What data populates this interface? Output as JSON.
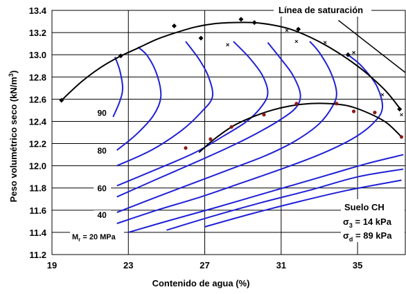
{
  "chart_data": {
    "type": "line",
    "xlabel": "Contenido de agua (%)",
    "ylabel_main": "Peso volumétrico seco (kN/m",
    "ylabel_sup": "3",
    "ylabel_close": ")",
    "xlim": [
      19,
      37.5
    ],
    "ylim": [
      11.2,
      13.4
    ],
    "xticks": [
      19,
      23,
      27,
      31,
      35
    ],
    "yticks": [
      11.2,
      11.4,
      11.6,
      11.8,
      12.0,
      12.2,
      12.4,
      12.6,
      12.8,
      13.0,
      13.2,
      13.4
    ],
    "grid": true,
    "annotations": {
      "saturation": "Línea de saturación",
      "soil": "Suelo CH",
      "sigma3_symbol": "σ",
      "sigma3_sub": "3",
      "sigma3_value": " = 14 kPa",
      "sigmad_symbol": "σ",
      "sigmad_sub": "d",
      "sigmad_value": " = 89 kPa",
      "mr_symbol": "M",
      "mr_sub": "r",
      "mr_value": " = 20 MPa"
    },
    "contour_labels": [
      {
        "text": "90",
        "x": 21.8,
        "y": 12.45
      },
      {
        "text": "80",
        "x": 21.8,
        "y": 12.11
      },
      {
        "text": "60",
        "x": 21.8,
        "y": 11.77
      },
      {
        "text": "40",
        "x": 21.8,
        "y": 11.53
      }
    ],
    "saturation_line": [
      {
        "x": 34.0,
        "y": 13.31
      },
      {
        "x": 37.5,
        "y": 12.84
      }
    ],
    "curves": [
      {
        "name": "upper compaction",
        "color": "#000000",
        "points": [
          [
            19.5,
            12.59
          ],
          [
            20.5,
            12.75
          ],
          [
            21.5,
            12.88
          ],
          [
            22.5,
            12.98
          ],
          [
            23.5,
            13.06
          ],
          [
            24.5,
            13.14
          ],
          [
            25.5,
            13.2
          ],
          [
            26.5,
            13.25
          ],
          [
            27.5,
            13.28
          ],
          [
            28.5,
            13.29
          ],
          [
            29.5,
            13.29
          ],
          [
            30.5,
            13.27
          ],
          [
            31.5,
            13.23
          ],
          [
            32.5,
            13.16
          ],
          [
            33.5,
            13.07
          ],
          [
            34.5,
            12.96
          ],
          [
            35.5,
            12.83
          ],
          [
            36.5,
            12.67
          ],
          [
            37.2,
            12.52
          ]
        ]
      },
      {
        "name": "lower compaction",
        "color": "#000000",
        "points": [
          [
            26.7,
            12.12
          ],
          [
            27.5,
            12.24
          ],
          [
            28.5,
            12.36
          ],
          [
            29.5,
            12.44
          ],
          [
            30.5,
            12.5
          ],
          [
            31.5,
            12.54
          ],
          [
            32.5,
            12.56
          ],
          [
            33.5,
            12.56
          ],
          [
            34.5,
            12.54
          ],
          [
            35.5,
            12.48
          ],
          [
            36.5,
            12.39
          ],
          [
            37.3,
            12.26
          ]
        ]
      }
    ],
    "contours": [
      {
        "color": "#1f1fd6",
        "points": [
          [
            22.2,
            12.44
          ],
          [
            22.55,
            12.58
          ],
          [
            22.7,
            12.7
          ],
          [
            22.55,
            12.86
          ],
          [
            22.3,
            12.98
          ]
        ]
      },
      {
        "color": "#1f1fd6",
        "points": [
          [
            22.4,
            12.14
          ],
          [
            23.4,
            12.28
          ],
          [
            24.3,
            12.45
          ],
          [
            24.7,
            12.62
          ],
          [
            24.5,
            12.82
          ],
          [
            24.0,
            12.99
          ],
          [
            23.5,
            13.07
          ]
        ]
      },
      {
        "color": "#1f1fd6",
        "points": [
          [
            22.4,
            12.0
          ],
          [
            24.2,
            12.14
          ],
          [
            25.8,
            12.32
          ],
          [
            26.8,
            12.48
          ],
          [
            27.4,
            12.62
          ],
          [
            27.2,
            12.8
          ],
          [
            26.7,
            12.96
          ],
          [
            26.0,
            13.12
          ]
        ]
      },
      {
        "color": "#1f1fd6",
        "points": [
          [
            22.4,
            11.82
          ],
          [
            24.5,
            11.97
          ],
          [
            26.5,
            12.12
          ],
          [
            28.0,
            12.27
          ],
          [
            29.2,
            12.4
          ],
          [
            30.0,
            12.54
          ],
          [
            30.3,
            12.66
          ],
          [
            30.0,
            12.82
          ],
          [
            29.3,
            12.98
          ],
          [
            28.5,
            13.12
          ]
        ]
      },
      {
        "color": "#1f1fd6",
        "points": [
          [
            22.4,
            11.72
          ],
          [
            24.5,
            11.88
          ],
          [
            26.5,
            12.03
          ],
          [
            28.3,
            12.17
          ],
          [
            29.7,
            12.29
          ],
          [
            31.0,
            12.42
          ],
          [
            31.8,
            12.53
          ],
          [
            32.0,
            12.65
          ],
          [
            31.6,
            12.82
          ],
          [
            31.0,
            12.96
          ],
          [
            30.3,
            13.11
          ]
        ]
      },
      {
        "color": "#1f1fd6",
        "points": [
          [
            22.4,
            11.58
          ],
          [
            24.5,
            11.72
          ],
          [
            26.5,
            11.85
          ],
          [
            28.5,
            11.98
          ],
          [
            30.3,
            12.1
          ],
          [
            31.8,
            12.23
          ],
          [
            33.0,
            12.38
          ],
          [
            33.7,
            12.54
          ],
          [
            33.9,
            12.66
          ],
          [
            33.6,
            12.84
          ],
          [
            33.0,
            13.02
          ],
          [
            32.5,
            13.12
          ]
        ]
      },
      {
        "color": "#1f1fd6",
        "points": [
          [
            22.4,
            11.48
          ],
          [
            24.5,
            11.6
          ],
          [
            26.8,
            11.72
          ],
          [
            29.0,
            11.85
          ],
          [
            31.0,
            11.97
          ],
          [
            33.0,
            12.1
          ],
          [
            34.7,
            12.24
          ],
          [
            35.8,
            12.38
          ],
          [
            36.3,
            12.52
          ],
          [
            36.0,
            12.72
          ],
          [
            35.2,
            12.9
          ],
          [
            34.5,
            13.0
          ]
        ]
      },
      {
        "color": "#1f1fd6",
        "points": [
          [
            23.0,
            11.4
          ],
          [
            25.0,
            11.5
          ],
          [
            27.5,
            11.62
          ],
          [
            29.5,
            11.72
          ],
          [
            31.5,
            11.82
          ],
          [
            33.5,
            11.92
          ],
          [
            35.5,
            12.02
          ],
          [
            37.4,
            12.1
          ]
        ]
      },
      {
        "color": "#1f1fd6",
        "points": [
          [
            25.0,
            11.42
          ],
          [
            27.5,
            11.55
          ],
          [
            30.0,
            11.67
          ],
          [
            32.5,
            11.78
          ],
          [
            35.0,
            11.9
          ],
          [
            37.4,
            11.97
          ]
        ]
      },
      {
        "color": "#1f1fd6",
        "points": [
          [
            27.0,
            11.45
          ],
          [
            29.5,
            11.57
          ],
          [
            32.0,
            11.68
          ],
          [
            34.5,
            11.78
          ],
          [
            37.3,
            11.87
          ]
        ]
      }
    ],
    "markers": {
      "diamond_black": [
        [
          19.5,
          12.59
        ],
        [
          22.6,
          12.99
        ],
        [
          25.4,
          13.26
        ],
        [
          26.8,
          13.15
        ],
        [
          28.9,
          13.32
        ],
        [
          29.6,
          13.29
        ],
        [
          31.9,
          13.23
        ],
        [
          34.5,
          13.0
        ],
        [
          37.2,
          12.51
        ]
      ],
      "cross_black": [
        [
          28.2,
          13.09
        ],
        [
          31.3,
          13.22
        ],
        [
          31.8,
          13.12
        ],
        [
          33.3,
          13.11
        ],
        [
          34.8,
          13.02
        ],
        [
          36.3,
          12.64
        ],
        [
          37.3,
          12.46
        ]
      ],
      "circle_red": [
        [
          26.0,
          12.16
        ],
        [
          27.3,
          12.24
        ],
        [
          28.4,
          12.35
        ],
        [
          30.1,
          12.46
        ],
        [
          31.8,
          12.56
        ],
        [
          33.9,
          12.56
        ],
        [
          34.8,
          12.49
        ],
        [
          35.9,
          12.48
        ],
        [
          37.3,
          12.26
        ]
      ]
    }
  }
}
